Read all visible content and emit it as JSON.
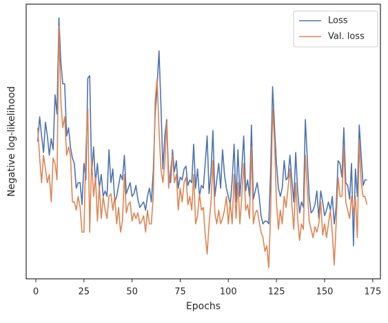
{
  "chart_data": {
    "type": "line",
    "x_label": "Epochs",
    "y_label": "Negative log-likelihood",
    "x": [
      1,
      2,
      3,
      4,
      5,
      6,
      7,
      8,
      9,
      10,
      11,
      12,
      13,
      14,
      15,
      16,
      17,
      18,
      19,
      20,
      21,
      22,
      23,
      24,
      25,
      26,
      27,
      28,
      29,
      30,
      31,
      32,
      33,
      34,
      35,
      36,
      37,
      38,
      39,
      40,
      41,
      42,
      43,
      44,
      45,
      46,
      47,
      48,
      49,
      50,
      51,
      52,
      53,
      54,
      55,
      56,
      57,
      58,
      59,
      60,
      61,
      62,
      63,
      64,
      65,
      66,
      67,
      68,
      69,
      70,
      71,
      72,
      73,
      74,
      75,
      76,
      77,
      78,
      79,
      80,
      81,
      82,
      83,
      84,
      85,
      86,
      87,
      88,
      89,
      90,
      91,
      92,
      93,
      94,
      95,
      96,
      97,
      98,
      99,
      100,
      101,
      102,
      103,
      104,
      105,
      106,
      107,
      108,
      109,
      110,
      111,
      112,
      113,
      114,
      115,
      116,
      117,
      118,
      119,
      120,
      121,
      122,
      123,
      124,
      125,
      126,
      127,
      128,
      129,
      130,
      131,
      132,
      133,
      134,
      135,
      136,
      137,
      138,
      139,
      140,
      141,
      142,
      143,
      144,
      145,
      146,
      147,
      148,
      149,
      150,
      151,
      152,
      153,
      154,
      155,
      156,
      157,
      158,
      159,
      160,
      161,
      162,
      163,
      164,
      165,
      166,
      167,
      168,
      169,
      170,
      171,
      172
    ],
    "series": [
      {
        "name": "Loss",
        "color": "#4c72b0",
        "values": [
          50,
          59,
          52,
          46,
          57,
          52,
          45,
          51,
          47,
          67,
          60,
          95,
          79,
          71,
          71,
          52,
          55,
          48,
          44,
          42,
          33,
          35,
          35,
          27,
          42,
          36,
          73,
          74,
          38,
          48,
          35,
          42,
          33,
          38,
          30,
          32,
          30,
          47,
          35,
          40,
          28,
          30,
          34,
          38,
          36,
          45,
          31,
          33,
          35,
          30,
          31,
          34,
          29,
          26,
          27,
          28,
          25,
          30,
          33,
          28,
          39,
          60,
          70,
          83,
          63,
          40,
          52,
          58,
          37,
          35,
          47,
          39,
          43,
          33,
          37,
          36,
          40,
          41,
          34,
          36,
          35,
          49,
          33,
          40,
          30,
          34,
          33,
          42,
          52,
          31,
          39,
          54,
          30,
          36,
          42,
          33,
          47,
          38,
          33,
          30,
          27,
          36,
          49,
          28,
          47,
          30,
          40,
          52,
          32,
          36,
          30,
          56,
          29,
          32,
          35,
          30,
          23,
          20,
          21,
          21,
          20,
          40,
          70,
          55,
          42,
          33,
          30,
          33,
          43,
          36,
          37,
          45,
          36,
          28,
          46,
          32,
          24,
          28,
          26,
          58,
          44,
          30,
          24,
          25,
          27,
          32,
          22,
          32,
          28,
          23,
          25,
          28,
          25,
          30,
          20,
          26,
          43,
          42,
          37,
          55,
          35,
          34,
          29,
          42,
          12,
          40,
          30,
          56,
          45,
          34,
          36,
          36
        ]
      },
      {
        "name": "Val. loss",
        "color": "#dd8452",
        "values": [
          55,
          44,
          35,
          45,
          40,
          35,
          38,
          28,
          44,
          42,
          36,
          92,
          65,
          55,
          59,
          45,
          48,
          45,
          28,
          28,
          25,
          30,
          26,
          17,
          17,
          47,
          62,
          17,
          44,
          30,
          37,
          21,
          34,
          22,
          30,
          25,
          22,
          30,
          31,
          25,
          30,
          20,
          26,
          17,
          21,
          38,
          24,
          27,
          28,
          21,
          24,
          22,
          24,
          20,
          21,
          23,
          17,
          25,
          20,
          20,
          30,
          65,
          73,
          54,
          40,
          35,
          42,
          57,
          33,
          40,
          45,
          35,
          38,
          25,
          33,
          28,
          35,
          37,
          27,
          30,
          25,
          38,
          20,
          23,
          31,
          25,
          26,
          16,
          9,
          20,
          28,
          43,
          24,
          20,
          25,
          20,
          22,
          25,
          30,
          20,
          28,
          20,
          38,
          22,
          35,
          20,
          30,
          42,
          25,
          27,
          22,
          48,
          20,
          24,
          25,
          21,
          17,
          15,
          10,
          12,
          4,
          25,
          62,
          50,
          28,
          18,
          25,
          20,
          30,
          26,
          33,
          40,
          27,
          18,
          35,
          22,
          14,
          20,
          18,
          45,
          33,
          21,
          18,
          15,
          19,
          17,
          20,
          28,
          16,
          20,
          15,
          20,
          25,
          17,
          5,
          20,
          37,
          30,
          30,
          48,
          28,
          25,
          22,
          30,
          24,
          30,
          15,
          50,
          35,
          30,
          30,
          27
        ]
      }
    ],
    "xlim": [
      -5,
      179
    ],
    "xticks": [
      0,
      25,
      50,
      75,
      100,
      125,
      150,
      175
    ],
    "ylim": [
      0,
      100
    ],
    "legend": "upper right"
  }
}
